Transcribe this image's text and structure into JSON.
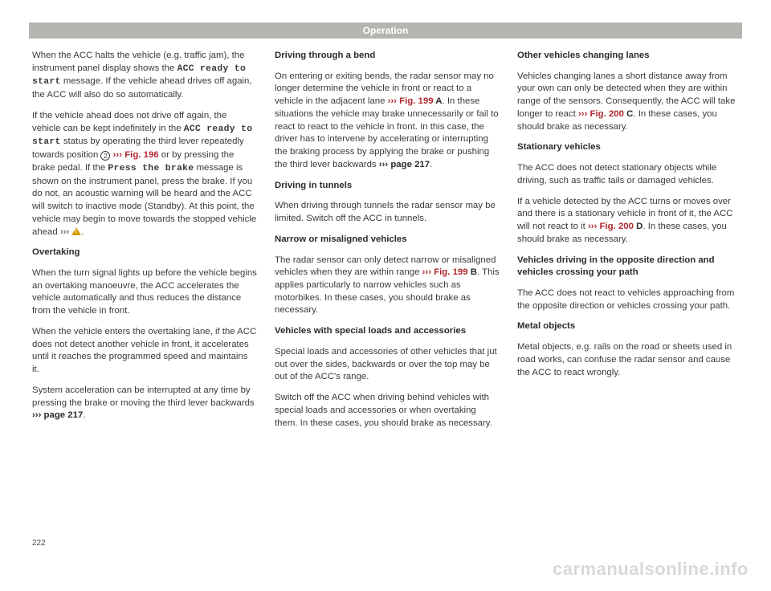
{
  "header": {
    "title": "Operation"
  },
  "page_number": "222",
  "watermark": "carmanualsonline.info",
  "col1": {
    "p1a": "When the ACC halts the vehicle (e.g. traffic jam), the instrument panel display shows the ",
    "p1_code": "ACC ready to start",
    "p1b": " message. If the vehicle ahead drives off again, the ACC will also do so automatically.",
    "p2a": "If the vehicle ahead does not drive off again, the vehicle can be kept indefinitely in the ",
    "p2_code": "ACC ready to start",
    "p2b": " status by operating the third lever repeatedly towards position ",
    "p2_circ": "2",
    "p2_fig": "››› Fig. 196",
    "p2c": " or by pressing the brake pedal. If the ",
    "p2_code2": "Press the brake",
    "p2d": " message is shown on the instrument panel, press the brake. If you do not, an acoustic warning will be heard and the ACC will switch to inactive mode (Standby). At this point, the vehicle may begin to move towards the stopped vehicle ahead ",
    "p2_arrows": "›››",
    "p2e": ".",
    "h1": "Overtaking",
    "p3": "When the turn signal lights up before the vehicle begins an overtaking manoeuvre, the ACC accelerates the vehicle automatically and thus reduces the distance from the vehicle in front.",
    "p4": "When the vehicle enters the overtaking lane, if the ACC does not detect another vehicle in front, it accelerates until it reaches the programmed speed and maintains it.",
    "p5a": "System acceleration can be interrupted at any time by pressing the brake or moving the third lever backwards ",
    "p5_ref": "››› page 217",
    "p5b": "."
  },
  "col2": {
    "h1": "Driving through a bend",
    "p1a": "On entering or exiting bends, the radar sensor may no longer determine the vehicle in front or react to a vehicle in the adjacent lane ",
    "p1_fig": "››› Fig. 199",
    "p1_figL": " A",
    "p1b": ". In these situations the vehicle may brake unnecessarily or fail to react to react to the vehicle in front. In this case, the driver has to intervene by accelerating or interrupting the braking process by applying the brake or pushing the third lever backwards ",
    "p1_ref": "››› page 217",
    "p1c": ".",
    "h2": "Driving in tunnels",
    "p2": "When driving through tunnels the radar sensor may be limited. Switch off the ACC in tunnels.",
    "h3": "Narrow or misaligned vehicles",
    "p3a": "The radar sensor can only detect narrow or misaligned vehicles when they are within range ",
    "p3_fig": "››› Fig. 199",
    "p3_figL": " B",
    "p3b": ". This applies particularly to narrow vehicles such as motorbikes. In these cases, you should brake as necessary.",
    "h4": "Vehicles with special loads and accessories",
    "p4": "Special loads and accessories of other vehicles that jut out over the sides, backwards or over the top may be out of the ACC's range.",
    "p5": "Switch off the ACC when driving behind vehicles with special loads and accessories or when overtaking them. In these cases, you should brake as necessary."
  },
  "col3": {
    "h1": "Other vehicles changing lanes",
    "p1a": "Vehicles changing lanes a short distance away from your own can only be detected when they are within range of the sensors. Consequently, the ACC will take longer to react ",
    "p1_fig": "››› Fig. 200",
    "p1_figL": " C",
    "p1b": ". In these cases, you should brake as necessary.",
    "h2": "Stationary vehicles",
    "p2": "The ACC does not detect stationary objects while driving, such as traffic tails or damaged vehicles.",
    "p3a": "If a vehicle detected by the ACC turns or moves over and there is a stationary vehicle in front of it, the ACC will not react to it ",
    "p3_fig": "››› Fig. 200",
    "p3_figL": " D",
    "p3b": ". In these cases, you should brake as necessary.",
    "h3": "Vehicles driving in the opposite direction and vehicles crossing your path",
    "p4": "The ACC does not react to vehicles approaching from the opposite direction or vehicles crossing your path.",
    "h4": "Metal objects",
    "p5": "Metal objects, e.g. rails on the road or sheets used in road works, can confuse the radar sensor and cause the ACC to react wrongly."
  }
}
